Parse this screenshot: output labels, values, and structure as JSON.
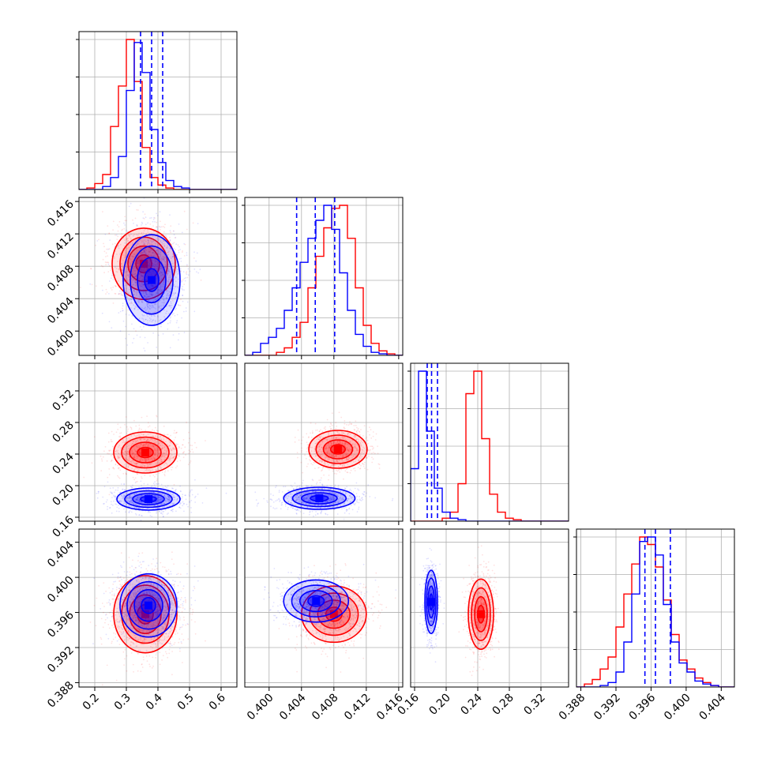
{
  "chart_data": {
    "type": "corner",
    "colors": {
      "series_a": "#0000ff",
      "series_b": "#ff0000"
    },
    "params": [
      {
        "xlim": [
          0.15,
          0.65
        ],
        "xticks": [
          "0.2",
          "0.3",
          "0.4",
          "0.5",
          "0.6"
        ],
        "xtick_values": [
          0.2,
          0.3,
          0.4,
          0.5,
          0.6
        ],
        "quantile_lines": [
          0.345,
          0.38,
          0.415
        ],
        "hist_a": [
          0,
          0,
          0,
          0.02,
          0.08,
          0.22,
          0.66,
          0.98,
          0.78,
          0.4,
          0.18,
          0.06,
          0.02,
          0.01,
          0,
          0,
          0,
          0,
          0,
          0
        ],
        "hist_b": [
          0,
          0.01,
          0.04,
          0.1,
          0.42,
          0.69,
          1.0,
          0.72,
          0.28,
          0.08,
          0.03,
          0.01,
          0,
          0,
          0,
          0,
          0,
          0,
          0,
          0
        ]
      },
      {
        "xlim": [
          0.397,
          0.4165
        ],
        "xticks": [
          "0.400",
          "0.404",
          "0.408",
          "0.412",
          "0.416"
        ],
        "xtick_values": [
          0.4,
          0.404,
          0.408,
          0.412,
          0.416
        ],
        "yticks": [
          "0.400",
          "0.404",
          "0.408",
          "0.412",
          "0.416"
        ],
        "quantile_lines": [
          0.4034,
          0.4057,
          0.4081
        ],
        "hist_a": [
          0,
          0.02,
          0.08,
          0.12,
          0.18,
          0.3,
          0.45,
          0.62,
          0.78,
          0.9,
          1.0,
          0.84,
          0.55,
          0.3,
          0.14,
          0.06,
          0.02,
          0.01,
          0,
          0
        ],
        "hist_b": [
          0,
          0,
          0,
          0,
          0.02,
          0.05,
          0.12,
          0.22,
          0.45,
          0.66,
          0.85,
          0.98,
          1.0,
          0.78,
          0.45,
          0.2,
          0.08,
          0.03,
          0.01,
          0
        ]
      },
      {
        "xlim": [
          0.155,
          0.355
        ],
        "xticks": [
          "0.16",
          "0.20",
          "0.24",
          "0.28",
          "0.32"
        ],
        "xtick_values": [
          0.16,
          0.2,
          0.24,
          0.28,
          0.32
        ],
        "yticks": [
          "0.16",
          "0.20",
          "0.24",
          "0.28",
          "0.32"
        ],
        "quantile_lines": [
          0.176,
          0.1815,
          0.189
        ],
        "hist_a": [
          0.35,
          1.0,
          0.6,
          0.22,
          0.06,
          0.02,
          0.01,
          0,
          0,
          0,
          0,
          0,
          0,
          0,
          0,
          0,
          0,
          0,
          0,
          0
        ],
        "hist_b": [
          0,
          0,
          0,
          0,
          0.02,
          0.06,
          0.25,
          0.85,
          1.0,
          0.55,
          0.18,
          0.06,
          0.02,
          0.01,
          0,
          0,
          0,
          0,
          0,
          0
        ]
      },
      {
        "xlim": [
          0.3875,
          0.4055
        ],
        "xticks": [
          "0.388",
          "0.392",
          "0.396",
          "0.400",
          "0.404"
        ],
        "xtick_values": [
          0.388,
          0.392,
          0.396,
          0.4,
          0.404
        ],
        "yticks": [
          "0.388",
          "0.392",
          "0.396",
          "0.400",
          "0.404"
        ],
        "quantile_lines": [
          0.3953,
          0.3965,
          0.3982
        ],
        "hist_a": [
          0,
          0,
          0,
          0.01,
          0.03,
          0.1,
          0.3,
          0.62,
          0.97,
          1.0,
          0.88,
          0.55,
          0.3,
          0.16,
          0.1,
          0.04,
          0.02,
          0.01,
          0,
          0
        ],
        "hist_b": [
          0,
          0.02,
          0.05,
          0.12,
          0.2,
          0.4,
          0.62,
          0.82,
          1.0,
          0.95,
          0.8,
          0.58,
          0.35,
          0.18,
          0.12,
          0.06,
          0.03,
          0.01,
          0,
          0
        ]
      }
    ],
    "pairs": [
      {
        "row": 1,
        "col": 0,
        "a": {
          "center": [
            0.38,
            0.4063
          ],
          "sigma": [
            0.045,
            0.0028
          ]
        },
        "b": {
          "center": [
            0.355,
            0.4083
          ],
          "sigma": [
            0.05,
            0.0022
          ]
        }
      },
      {
        "row": 2,
        "col": 0,
        "a": {
          "center": [
            0.37,
            0.183
          ],
          "sigma": [
            0.05,
            0.007
          ]
        },
        "b": {
          "center": [
            0.36,
            0.242
          ],
          "sigma": [
            0.05,
            0.013
          ]
        }
      },
      {
        "row": 2,
        "col": 1,
        "a": {
          "center": [
            0.4062,
            0.184
          ],
          "sigma": [
            0.0022,
            0.007
          ]
        },
        "b": {
          "center": [
            0.4085,
            0.246
          ],
          "sigma": [
            0.0018,
            0.012
          ]
        }
      },
      {
        "row": 3,
        "col": 0,
        "a": {
          "center": [
            0.37,
            0.3968
          ],
          "sigma": [
            0.045,
            0.0018
          ]
        },
        "b": {
          "center": [
            0.36,
            0.3958
          ],
          "sigma": [
            0.05,
            0.0022
          ]
        }
      },
      {
        "row": 3,
        "col": 1,
        "a": {
          "center": [
            0.4058,
            0.3973
          ],
          "sigma": [
            0.002,
            0.0012
          ]
        },
        "b": {
          "center": [
            0.408,
            0.3958
          ],
          "sigma": [
            0.002,
            0.0016
          ]
        }
      },
      {
        "row": 3,
        "col": 2,
        "a": {
          "center": [
            0.181,
            0.3972
          ],
          "sigma": [
            0.004,
            0.0018
          ]
        },
        "b": {
          "center": [
            0.244,
            0.3958
          ],
          "sigma": [
            0.008,
            0.002
          ]
        }
      }
    ]
  }
}
